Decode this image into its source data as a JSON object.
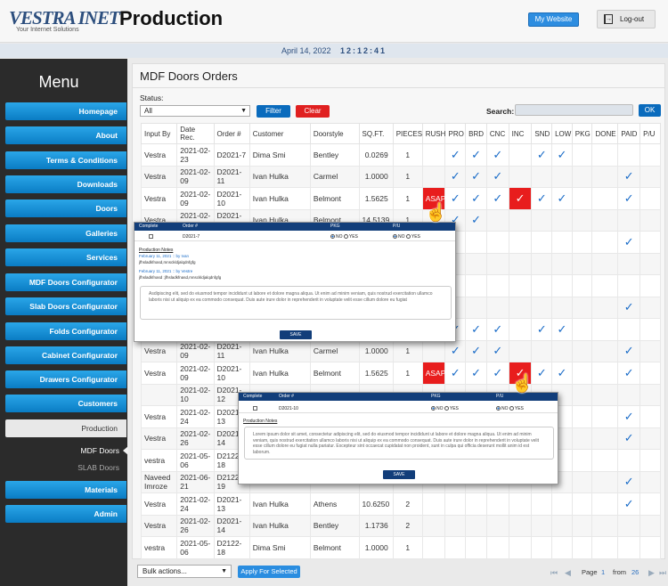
{
  "header": {
    "logo": "VESTRA INET",
    "logo_tagline": "Your Internet Solutions",
    "app_title": "Production",
    "my_website": "My Website",
    "logout": "Log-out"
  },
  "datebar": {
    "date": "April 14, 2022",
    "time": "12:12:41"
  },
  "sidebar": {
    "title": "Menu",
    "items": [
      {
        "label": "Homepage"
      },
      {
        "label": "About"
      },
      {
        "label": "Terms & Conditions"
      },
      {
        "label": "Downloads"
      },
      {
        "label": "Doors"
      },
      {
        "label": "Galleries"
      },
      {
        "label": "Services"
      },
      {
        "label": "MDF Doors Configurator"
      },
      {
        "label": "Slab Doors Configurator"
      },
      {
        "label": "Folds Configurator"
      },
      {
        "label": "Cabinet Configurator"
      },
      {
        "label": "Drawers Configurator"
      },
      {
        "label": "Customers"
      },
      {
        "label": "Production"
      },
      {
        "label": "MDF Doors"
      },
      {
        "label": "SLAB Doors"
      },
      {
        "label": "Materials"
      },
      {
        "label": "Admin"
      }
    ]
  },
  "panel": {
    "title": "MDF Doors Orders",
    "status_label": "Status:",
    "status_value": "All",
    "filter": "Filter",
    "clear": "Clear",
    "search_label": "Search:",
    "ok": "OK"
  },
  "table": {
    "headers": [
      "Input By",
      "Date Rec.",
      "Order #",
      "Customer",
      "Doorstyle",
      "SQ.FT.",
      "PIECES",
      "RUSH",
      "PRO",
      "BRD",
      "CNC",
      "INC",
      "SND",
      "LOW",
      "PKG",
      "DONE",
      "PAID",
      "P/U"
    ],
    "rows": [
      {
        "input": "Vestra",
        "date": "2021-02-23",
        "order": "D2021-7",
        "customer": "Dima Smi",
        "style": "Bentley",
        "sqft": "0.0269",
        "pieces": "1",
        "rush": "",
        "pro": "✓",
        "brd": "✓",
        "cnc": "✓",
        "inc": "",
        "snd": "✓",
        "low": "✓",
        "pkg": "",
        "done": "",
        "paid": "",
        "pu": ""
      },
      {
        "input": "Vestra",
        "date": "2021-02-09",
        "order": "D2021-11",
        "customer": "Ivan Hulka",
        "style": "Carmel",
        "sqft": "1.0000",
        "pieces": "1",
        "rush": "",
        "pro": "✓",
        "brd": "✓",
        "cnc": "✓",
        "inc": "",
        "snd": "",
        "low": "",
        "pkg": "",
        "done": "",
        "paid": "✓",
        "pu": ""
      },
      {
        "input": "Vestra",
        "date": "2021-02-09",
        "order": "D2021-10",
        "customer": "Ivan Hulka",
        "style": "Belmont",
        "sqft": "1.5625",
        "pieces": "1",
        "rush": "ASAP",
        "pro": "✓",
        "brd": "✓",
        "cnc": "✓",
        "inc": "✓",
        "snd": "✓",
        "low": "✓",
        "pkg": "",
        "done": "",
        "paid": "✓",
        "pu": ""
      },
      {
        "input": "Vestra",
        "date": "2021-02-10",
        "order": "D2021-12",
        "customer": "Ivan Hulka",
        "style": "Belmont",
        "sqft": "14.5139",
        "pieces": "1",
        "rush": "",
        "pro": "✓",
        "brd": "✓",
        "cnc": "",
        "inc": "",
        "snd": "",
        "low": "",
        "pkg": "",
        "done": "",
        "paid": "",
        "pu": ""
      },
      {
        "input": "",
        "date": "",
        "order": "",
        "customer": "",
        "style": "",
        "sqft": "",
        "pieces": "",
        "rush": "",
        "pro": "",
        "brd": "",
        "cnc": "",
        "inc": "",
        "snd": "",
        "low": "",
        "pkg": "",
        "done": "",
        "paid": "✓",
        "pu": ""
      },
      {
        "input": "",
        "date": "",
        "order": "",
        "customer": "",
        "style": "",
        "sqft": "",
        "pieces": "",
        "rush": "",
        "pro": "",
        "brd": "",
        "cnc": "",
        "inc": "",
        "snd": "",
        "low": "",
        "pkg": "",
        "done": "",
        "paid": "",
        "pu": ""
      },
      {
        "input": "",
        "date": "",
        "order": "",
        "customer": "",
        "style": "",
        "sqft": "",
        "pieces": "",
        "rush": "",
        "pro": "",
        "brd": "",
        "cnc": "",
        "inc": "",
        "snd": "",
        "low": "",
        "pkg": "",
        "done": "",
        "paid": "",
        "pu": ""
      },
      {
        "input": "",
        "date": "",
        "order": "",
        "customer": "",
        "style": "",
        "sqft": "",
        "pieces": "",
        "rush": "",
        "pro": "",
        "brd": "",
        "cnc": "",
        "inc": "",
        "snd": "",
        "low": "",
        "pkg": "",
        "done": "",
        "paid": "✓",
        "pu": ""
      },
      {
        "input": "",
        "date": "",
        "order": "",
        "customer": "",
        "style": "",
        "sqft": "",
        "pieces": "",
        "rush": "",
        "pro": "✓",
        "brd": "✓",
        "cnc": "✓",
        "inc": "",
        "snd": "✓",
        "low": "✓",
        "pkg": "",
        "done": "",
        "paid": "",
        "pu": ""
      },
      {
        "input": "Vestra",
        "date": "2021-02-09",
        "order": "D2021-11",
        "customer": "Ivan Hulka",
        "style": "Carmel",
        "sqft": "1.0000",
        "pieces": "1",
        "rush": "",
        "pro": "✓",
        "brd": "✓",
        "cnc": "✓",
        "inc": "",
        "snd": "",
        "low": "",
        "pkg": "",
        "done": "",
        "paid": "✓",
        "pu": ""
      },
      {
        "input": "Vestra",
        "date": "2021-02-09",
        "order": "D2021-10",
        "customer": "Ivan Hulka",
        "style": "Belmont",
        "sqft": "1.5625",
        "pieces": "1",
        "rush": "ASAP",
        "pro": "✓",
        "brd": "✓",
        "cnc": "✓",
        "inc": "✓",
        "snd": "✓",
        "low": "✓",
        "pkg": "",
        "done": "",
        "paid": "✓",
        "pu": ""
      },
      {
        "input": "",
        "date": "2021-02-10",
        "order": "D2021-12",
        "customer": "",
        "style": "",
        "sqft": "",
        "pieces": "",
        "rush": "",
        "pro": "",
        "brd": "",
        "cnc": "",
        "inc": "",
        "snd": "",
        "low": "",
        "pkg": "",
        "done": "",
        "paid": "",
        "pu": ""
      },
      {
        "input": "Vestra",
        "date": "2021-02-24",
        "order": "D2021-13",
        "customer": "",
        "style": "",
        "sqft": "",
        "pieces": "",
        "rush": "",
        "pro": "",
        "brd": "",
        "cnc": "",
        "inc": "",
        "snd": "",
        "low": "",
        "pkg": "",
        "done": "",
        "paid": "✓",
        "pu": ""
      },
      {
        "input": "Vestra",
        "date": "2021-02-26",
        "order": "D2021-14",
        "customer": "",
        "style": "",
        "sqft": "",
        "pieces": "",
        "rush": "",
        "pro": "",
        "brd": "",
        "cnc": "",
        "inc": "",
        "snd": "",
        "low": "",
        "pkg": "",
        "done": "",
        "paid": "✓",
        "pu": ""
      },
      {
        "input": "vestra",
        "date": "2021-05-06",
        "order": "D2122-18",
        "customer": "",
        "style": "",
        "sqft": "",
        "pieces": "",
        "rush": "",
        "pro": "",
        "brd": "",
        "cnc": "",
        "inc": "",
        "snd": "",
        "low": "",
        "pkg": "",
        "done": "",
        "paid": "",
        "pu": ""
      },
      {
        "input": "Naveed Imroze",
        "date": "2021-06-21",
        "order": "D2122-19",
        "customer": "",
        "style": "",
        "sqft": "",
        "pieces": "",
        "rush": "",
        "pro": "",
        "brd": "",
        "cnc": "",
        "inc": "",
        "snd": "",
        "low": "",
        "pkg": "",
        "done": "",
        "paid": "✓",
        "pu": ""
      },
      {
        "input": "Vestra",
        "date": "2021-02-24",
        "order": "D2021-13",
        "customer": "Ivan Hulka",
        "style": "Athens",
        "sqft": "10.6250",
        "pieces": "2",
        "rush": "",
        "pro": "",
        "brd": "",
        "cnc": "",
        "inc": "",
        "snd": "",
        "low": "",
        "pkg": "",
        "done": "",
        "paid": "✓",
        "pu": ""
      },
      {
        "input": "Vestra",
        "date": "2021-02-26",
        "order": "D2021-14",
        "customer": "Ivan Hulka",
        "style": "Bentley",
        "sqft": "1.1736",
        "pieces": "2",
        "rush": "",
        "pro": "",
        "brd": "",
        "cnc": "",
        "inc": "",
        "snd": "",
        "low": "",
        "pkg": "",
        "done": "",
        "paid": "",
        "pu": ""
      },
      {
        "input": "vestra",
        "date": "2021-05-06",
        "order": "D2122-18",
        "customer": "Dima Smi",
        "style": "Belmont",
        "sqft": "1.0000",
        "pieces": "1",
        "rush": "",
        "pro": "",
        "brd": "",
        "cnc": "",
        "inc": "",
        "snd": "",
        "low": "",
        "pkg": "",
        "done": "",
        "paid": "",
        "pu": ""
      }
    ]
  },
  "popup1": {
    "col_complete": "Complete",
    "col_order": "Order #",
    "col_pkg": "PKG",
    "col_pu": "P/U",
    "order": "D2021-7",
    "no": "NO",
    "yes": "YES",
    "notes_title": "Production Notes",
    "note1_meta": "February 11, 2021 :: by Ivan",
    "note1_text": "jfhsladkfnasd,mnsckldjalqdnfgfg",
    "note2_meta": "February 11, 2021 :: by Vestre",
    "note2_text": "jfhsladkfnasd :jfhsladkfnasd,mnsckldjalqdnfgfg",
    "textarea": "Asdipiscing elit, sed do eiusmod tempor incididunt ut labore et dolore magna aliqua. Ut enim ad minim veniam, quis nostrud exercitation ullamco laboris nisi ut aliquip ex ea commodo consequat. Duis aute irure dolor in reprehenderit in voluptate velit esse cillum dolore eu fugiat",
    "save": "SAVE"
  },
  "popup2": {
    "col_complete": "Complete",
    "col_order": "Order #",
    "col_pkg": "PKG",
    "col_pu": "P/U",
    "order": "D2021-10",
    "no": "NO",
    "yes": "YES",
    "notes_title": "Production Notes",
    "textarea": "Lorem ipsum dolor sit amet, consectetur adipiscing elit, sed do eiusmod tempor incididunt ut labore et dolore magna aliqua. Ut enim ad minim veniam, quis nostrud exercitation ullamco laboris nisi ut aliquip ex ea commodo consequat. Duis aute irure dolor in reprehenderit in voluptate velit esse cillum dolore eu fugiat nulla pariatur. Excepteur sint occaecat cupidatat non proident, sunt in culpa qui officia deserunt mollit anim id est laborum.",
    "save": "SAVE"
  },
  "footer": {
    "bulk": "Bulk actions...",
    "apply": "Apply For Selected",
    "page_label": "Page",
    "page": "1",
    "from_label": "from",
    "total": "26"
  },
  "colors": {
    "nav": "#0a7cc4",
    "rush": "#e81d1d",
    "check": "#1a6cc8",
    "popup_head": "#123e7a"
  }
}
